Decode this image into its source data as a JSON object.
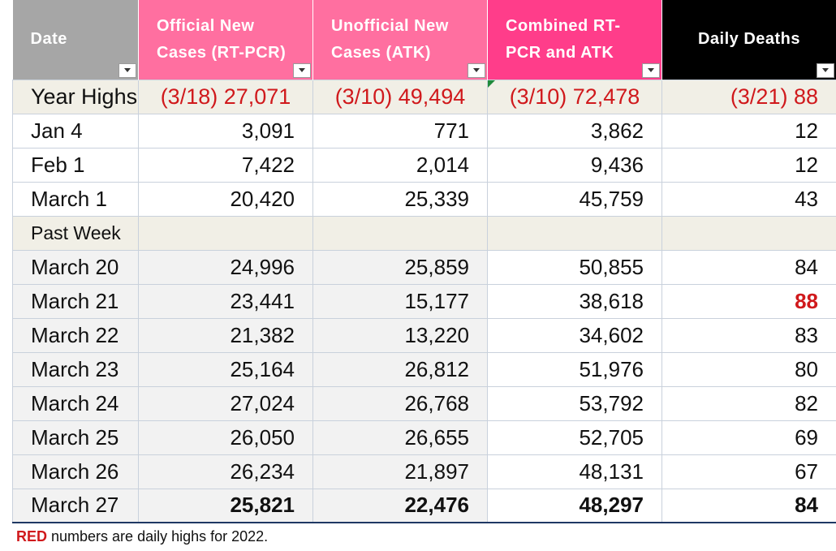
{
  "header": {
    "date": "Date",
    "official": "Official New\nCases  (RT-PCR)",
    "unofficial": "Unofficial New\nCases (ATK)",
    "combined": "Combined RT-\nPCR and ATK",
    "deaths": "Daily Deaths"
  },
  "colors": {
    "header_gray": "#a6a6a6",
    "header_pink": "#ff6fa0",
    "header_hotpink": "#ff3d8a",
    "header_black": "#000000",
    "highlight_red": "#d0191c",
    "section_beige": "#f1efe6"
  },
  "year_highs": {
    "label": "Year Highs",
    "official": "(3/18) 27,071",
    "unofficial": "(3/10) 49,494",
    "combined": "(3/10) 72,478",
    "deaths": "(3/21) 88"
  },
  "rows_top": [
    {
      "date": "Jan 4",
      "official": "3,091",
      "unofficial": "771",
      "combined": "3,862",
      "deaths": "12"
    },
    {
      "date": "Feb 1",
      "official": "7,422",
      "unofficial": "2,014",
      "combined": "9,436",
      "deaths": "12"
    },
    {
      "date": "March 1",
      "official": "20,420",
      "unofficial": "25,339",
      "combined": "45,759",
      "deaths": "43"
    }
  ],
  "section_label": "Past Week",
  "rows_week": [
    {
      "date": "March 20",
      "official": "24,996",
      "unofficial": "25,859",
      "combined": "50,855",
      "deaths": "84"
    },
    {
      "date": "March 21",
      "official": "23,441",
      "unofficial": "15,177",
      "combined": "38,618",
      "deaths": "88"
    },
    {
      "date": "March 22",
      "official": "21,382",
      "unofficial": "13,220",
      "combined": "34,602",
      "deaths": "83"
    },
    {
      "date": "March 23",
      "official": "25,164",
      "unofficial": "26,812",
      "combined": "51,976",
      "deaths": "80"
    },
    {
      "date": "March 24",
      "official": "27,024",
      "unofficial": "26,768",
      "combined": "53,792",
      "deaths": "82"
    },
    {
      "date": "March 25",
      "official": "26,050",
      "unofficial": "26,655",
      "combined": "52,705",
      "deaths": "69"
    },
    {
      "date": "March 26",
      "official": "26,234",
      "unofficial": "21,897",
      "combined": "48,131",
      "deaths": "67"
    },
    {
      "date": "March 27",
      "official": "25,821",
      "unofficial": "22,476",
      "combined": "48,297",
      "deaths": "84"
    }
  ],
  "footnote": {
    "red_word": "RED",
    "rest": " numbers are daily highs for 2022."
  }
}
